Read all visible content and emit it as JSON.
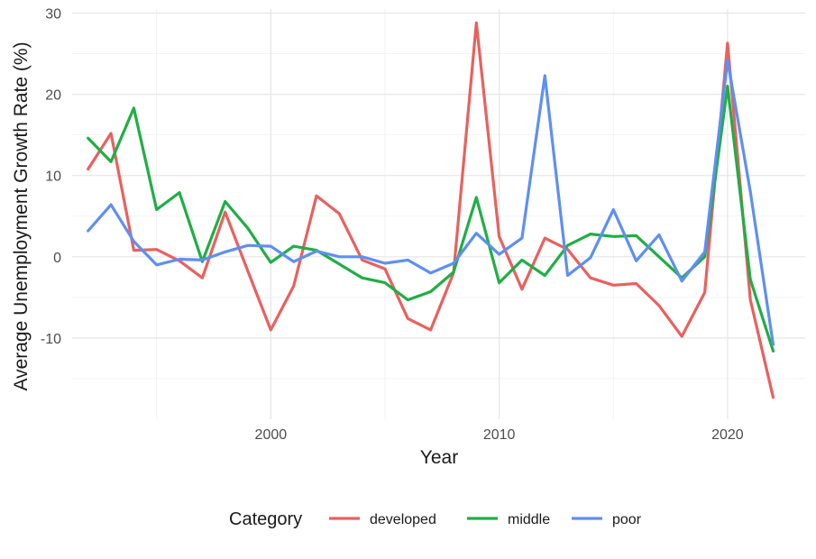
{
  "chart_data": {
    "type": "line",
    "xlabel": "Year",
    "ylabel": "Average Unemployment Growth Rate (%)",
    "xlim": [
      1991.3,
      2023.4
    ],
    "ylim": [
      -20,
      30.5
    ],
    "x_ticks": [
      2000,
      2010,
      2020
    ],
    "y_ticks": [
      -10,
      0,
      10,
      20,
      30
    ],
    "grid": true,
    "legend": {
      "title": "Category",
      "position": "bottom"
    },
    "x": [
      1992,
      1993,
      1994,
      1995,
      1996,
      1997,
      1998,
      1999,
      2000,
      2001,
      2002,
      2003,
      2004,
      2005,
      2006,
      2007,
      2008,
      2009,
      2010,
      2011,
      2012,
      2013,
      2014,
      2015,
      2016,
      2017,
      2018,
      2019,
      2020,
      2021,
      2022
    ],
    "series": [
      {
        "name": "developed",
        "color": "#E8615F",
        "values": [
          10.8,
          15.2,
          0.8,
          0.9,
          -0.5,
          -2.6,
          5.5,
          -1.8,
          -9.0,
          -3.6,
          7.5,
          5.3,
          -0.4,
          -1.5,
          -7.6,
          -9.0,
          -2.0,
          28.8,
          2.5,
          -4.0,
          2.3,
          0.9,
          -2.6,
          -3.5,
          -3.3,
          -6.0,
          -9.8,
          -4.4,
          26.3,
          -5.3,
          -17.3
        ]
      },
      {
        "name": "middle",
        "color": "#20AE45",
        "values": [
          14.6,
          11.7,
          18.3,
          5.8,
          7.9,
          -0.6,
          6.8,
          3.5,
          -0.7,
          1.3,
          0.8,
          -0.9,
          -2.6,
          -3.2,
          -5.3,
          -4.3,
          -1.9,
          7.3,
          -3.2,
          -0.4,
          -2.3,
          1.4,
          2.8,
          2.5,
          2.6,
          0.0,
          -2.6,
          0.0,
          21.0,
          -2.8,
          -11.6
        ]
      },
      {
        "name": "poor",
        "color": "#5E8FF2",
        "values": [
          3.2,
          6.4,
          1.9,
          -1.0,
          -0.3,
          -0.4,
          0.6,
          1.4,
          1.3,
          -0.6,
          0.7,
          0.0,
          0.0,
          -0.8,
          -0.4,
          -2.0,
          -0.8,
          2.9,
          0.3,
          2.3,
          22.3,
          -2.3,
          -0.1,
          5.8,
          -0.5,
          2.7,
          -3.0,
          0.6,
          24.2,
          8.0,
          -10.8
        ]
      }
    ]
  }
}
